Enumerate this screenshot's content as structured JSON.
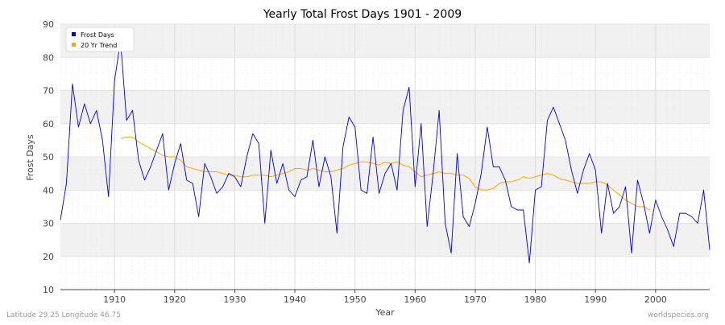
{
  "chart_data": {
    "type": "line",
    "title": "Yearly Total Frost Days 1901 - 2009",
    "xlabel": "Year",
    "ylabel": "Frost Days",
    "xlim": [
      1901,
      2009
    ],
    "ylim": [
      10,
      90
    ],
    "x_ticks": [
      1910,
      1920,
      1930,
      1940,
      1950,
      1960,
      1970,
      1980,
      1990,
      2000
    ],
    "y_ticks": [
      10,
      20,
      30,
      40,
      50,
      60,
      70,
      80,
      90
    ],
    "grid": true,
    "legend_position": "top-left",
    "series": [
      {
        "name": "Frost Days",
        "color": "#0000cc",
        "x": [
          1901,
          1902,
          1903,
          1904,
          1905,
          1906,
          1907,
          1908,
          1909,
          1910,
          1911,
          1912,
          1913,
          1914,
          1915,
          1916,
          1917,
          1918,
          1919,
          1920,
          1921,
          1922,
          1923,
          1924,
          1925,
          1926,
          1927,
          1928,
          1929,
          1930,
          1931,
          1932,
          1933,
          1934,
          1935,
          1936,
          1937,
          1938,
          1939,
          1940,
          1941,
          1942,
          1943,
          1944,
          1945,
          1946,
          1947,
          1948,
          1949,
          1950,
          1951,
          1952,
          1953,
          1954,
          1955,
          1956,
          1957,
          1958,
          1959,
          1960,
          1961,
          1962,
          1963,
          1964,
          1965,
          1966,
          1967,
          1968,
          1969,
          1970,
          1971,
          1972,
          1973,
          1974,
          1975,
          1976,
          1977,
          1978,
          1979,
          1980,
          1981,
          1982,
          1983,
          1984,
          1985,
          1986,
          1987,
          1988,
          1989,
          1990,
          1991,
          1992,
          1993,
          1994,
          1995,
          1996,
          1997,
          1998,
          1999,
          2000,
          2001,
          2002,
          2003,
          2004,
          2005,
          2006,
          2007,
          2008,
          2009
        ],
        "values": [
          31,
          42,
          72,
          59,
          66,
          60,
          64,
          55,
          38,
          73,
          85,
          61,
          64,
          49,
          43,
          47,
          52,
          57,
          40,
          48,
          54,
          43,
          42,
          32,
          48,
          44,
          39,
          41,
          45,
          44,
          41,
          50,
          57,
          54,
          30,
          52,
          42,
          48,
          40,
          38,
          43,
          44,
          55,
          41,
          50,
          44,
          27,
          53,
          62,
          59,
          40,
          39,
          56,
          39,
          45,
          48,
          40,
          64,
          71,
          41,
          60,
          29,
          45,
          64,
          30,
          21,
          51,
          32,
          29,
          36,
          45,
          59,
          47,
          47,
          43,
          35,
          34,
          34,
          18,
          40,
          41,
          61,
          65,
          60,
          55,
          46,
          39,
          46,
          51,
          46,
          27,
          42,
          33,
          35,
          41,
          21,
          43,
          36,
          27,
          37,
          32,
          28,
          23,
          33,
          33,
          32,
          30,
          40,
          22
        ]
      },
      {
        "name": "20 Yr Trend",
        "color": "#ffa500",
        "x": [
          1911,
          1912,
          1913,
          1914,
          1915,
          1916,
          1917,
          1918,
          1919,
          1920,
          1921,
          1922,
          1923,
          1924,
          1925,
          1926,
          1927,
          1928,
          1929,
          1930,
          1931,
          1932,
          1933,
          1934,
          1935,
          1936,
          1937,
          1938,
          1939,
          1940,
          1941,
          1942,
          1943,
          1944,
          1945,
          1946,
          1947,
          1948,
          1949,
          1950,
          1951,
          1952,
          1953,
          1954,
          1955,
          1956,
          1957,
          1958,
          1959,
          1960,
          1961,
          1962,
          1963,
          1964,
          1965,
          1966,
          1967,
          1968,
          1969,
          1970,
          1971,
          1972,
          1973,
          1974,
          1975,
          1976,
          1977,
          1978,
          1979,
          1980,
          1981,
          1982,
          1983,
          1984,
          1985,
          1986,
          1987,
          1988,
          1989,
          1990,
          1991,
          1992,
          1993,
          1994,
          1995,
          1996,
          1997,
          1998,
          1999
        ],
        "values": [
          55.5,
          56,
          56,
          54.5,
          53.5,
          52.5,
          51.5,
          50.5,
          50,
          50,
          49,
          47,
          46.5,
          46,
          45.5,
          45.5,
          45.5,
          45,
          44.5,
          44.5,
          44,
          44,
          44.5,
          44.5,
          44.5,
          44,
          44.5,
          45,
          45.5,
          46.5,
          46.5,
          46,
          46.5,
          46,
          45.5,
          45.5,
          46,
          46.5,
          47.5,
          48,
          48.5,
          48.5,
          48,
          47.5,
          48.5,
          48,
          48.5,
          47.5,
          47,
          45.5,
          44,
          44.5,
          45,
          45.5,
          45,
          45,
          44.5,
          44.5,
          43.5,
          41,
          40,
          40,
          40.5,
          42,
          42.5,
          42.5,
          43,
          44,
          43.5,
          44,
          44.5,
          45,
          44.5,
          43.5,
          43,
          42.5,
          42,
          42,
          42,
          42.5,
          42.5,
          41.5,
          40,
          38.5,
          37,
          36,
          35,
          35,
          34
        ]
      }
    ]
  },
  "footer": {
    "location": "Latitude 29.25 Longitude 46.75",
    "source": "worldspecies.org"
  }
}
